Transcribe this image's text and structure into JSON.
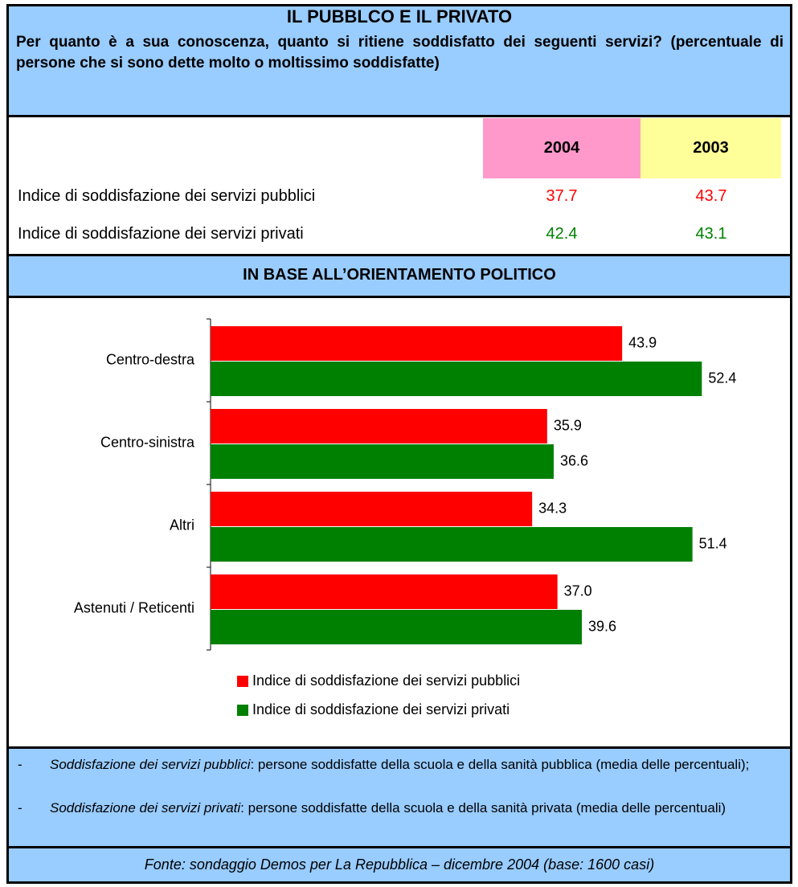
{
  "header": {
    "title": "IL PUBBLCO E IL PRIVATO",
    "subtitle": "Per quanto è a sua conoscenza, quanto si ritiene soddisfatto dei seguenti servizi? (percentuale di persone che si sono dette molto o moltissimo soddisfatte)"
  },
  "table": {
    "columns": [
      "2004",
      "2003"
    ],
    "rows": [
      [
        "Indice di soddisfazione dei servizi pubblici",
        37.7,
        43.7
      ],
      [
        "Indice di soddisfazione dei servizi privati",
        42.4,
        43.1
      ]
    ]
  },
  "section_title": "IN BASE ALL’ORIENTAMENTO POLITICO",
  "chart_data": {
    "type": "bar",
    "orientation": "horizontal",
    "categories": [
      "Centro-destra",
      "Centro-sinistra",
      "Altri",
      "Astenuti / Reticenti"
    ],
    "series": [
      {
        "name": "Indice di soddisfazione dei servizi pubblici",
        "color": "#ff0000",
        "values": [
          43.9,
          35.9,
          34.3,
          37.0
        ],
        "value_labels": [
          "43.9",
          "35.9",
          "34.3",
          "37.0"
        ]
      },
      {
        "name": "Indice di soddisfazione dei servizi privati",
        "color": "#008000",
        "values": [
          52.4,
          36.6,
          51.4,
          39.6
        ]
      }
    ],
    "xlim": [
      0,
      60
    ]
  },
  "notes": [
    {
      "bullet": "-",
      "term": "Soddisfazione dei servizi pubblici",
      "text": ": persone soddisfatte della scuola e della sanità pubblica (media delle percentuali);"
    },
    {
      "bullet": "-",
      "term": "Soddisfazione dei servizi privati",
      "text": ": persone soddisfatte della scuola e della sanità privata (media delle percentuali)"
    }
  ],
  "source": "Fonte: sondaggio Demos per La Repubblica – dicembre 2004 (base: 1600 casi)"
}
